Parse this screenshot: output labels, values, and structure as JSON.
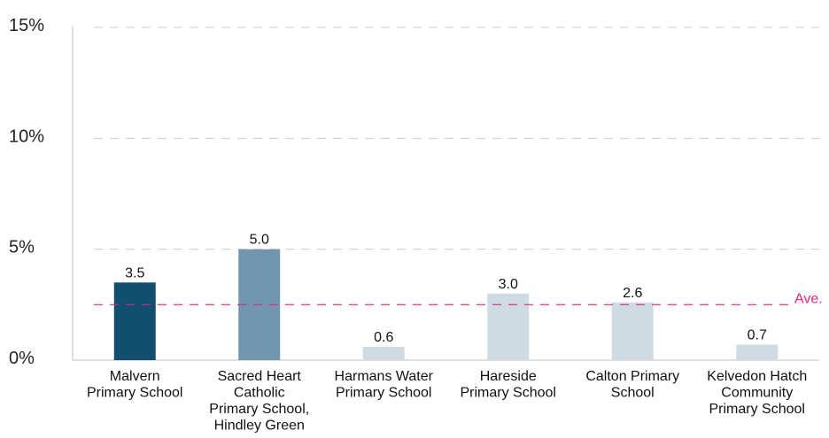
{
  "chart_data": {
    "type": "bar",
    "title": "",
    "xlabel": "",
    "ylabel": "",
    "ylim": [
      0,
      15
    ],
    "yticks": [
      "0%",
      "5%",
      "10%",
      "15%"
    ],
    "ytick_values": [
      0,
      5,
      10,
      15
    ],
    "grid": true,
    "categories": [
      [
        "Malvern",
        "Primary School"
      ],
      [
        "Sacred Heart",
        "Catholic",
        "Primary School,",
        "Hindley Green"
      ],
      [
        "Harmans Water",
        "Primary School"
      ],
      [
        "Hareside",
        "Primary School"
      ],
      [
        "Calton Primary",
        "School"
      ],
      [
        "Kelvedon Hatch",
        "Community",
        "Primary School"
      ]
    ],
    "values": [
      3.5,
      5.0,
      0.6,
      3.0,
      2.6,
      0.7
    ],
    "data_labels": [
      "3.5",
      "5.0",
      "0.6",
      "3.0",
      "2.6",
      "0.7"
    ],
    "bar_colors": [
      "#124e6e",
      "#7196ad",
      "#cfdbe2",
      "#cfdbe2",
      "#cfdbe2",
      "#cfdbe2"
    ],
    "average": {
      "value": 2.5,
      "label": "Ave.",
      "color": "#e0218a"
    },
    "gridline_color": "#cccccc",
    "axis_color": "#bfbfbf"
  }
}
